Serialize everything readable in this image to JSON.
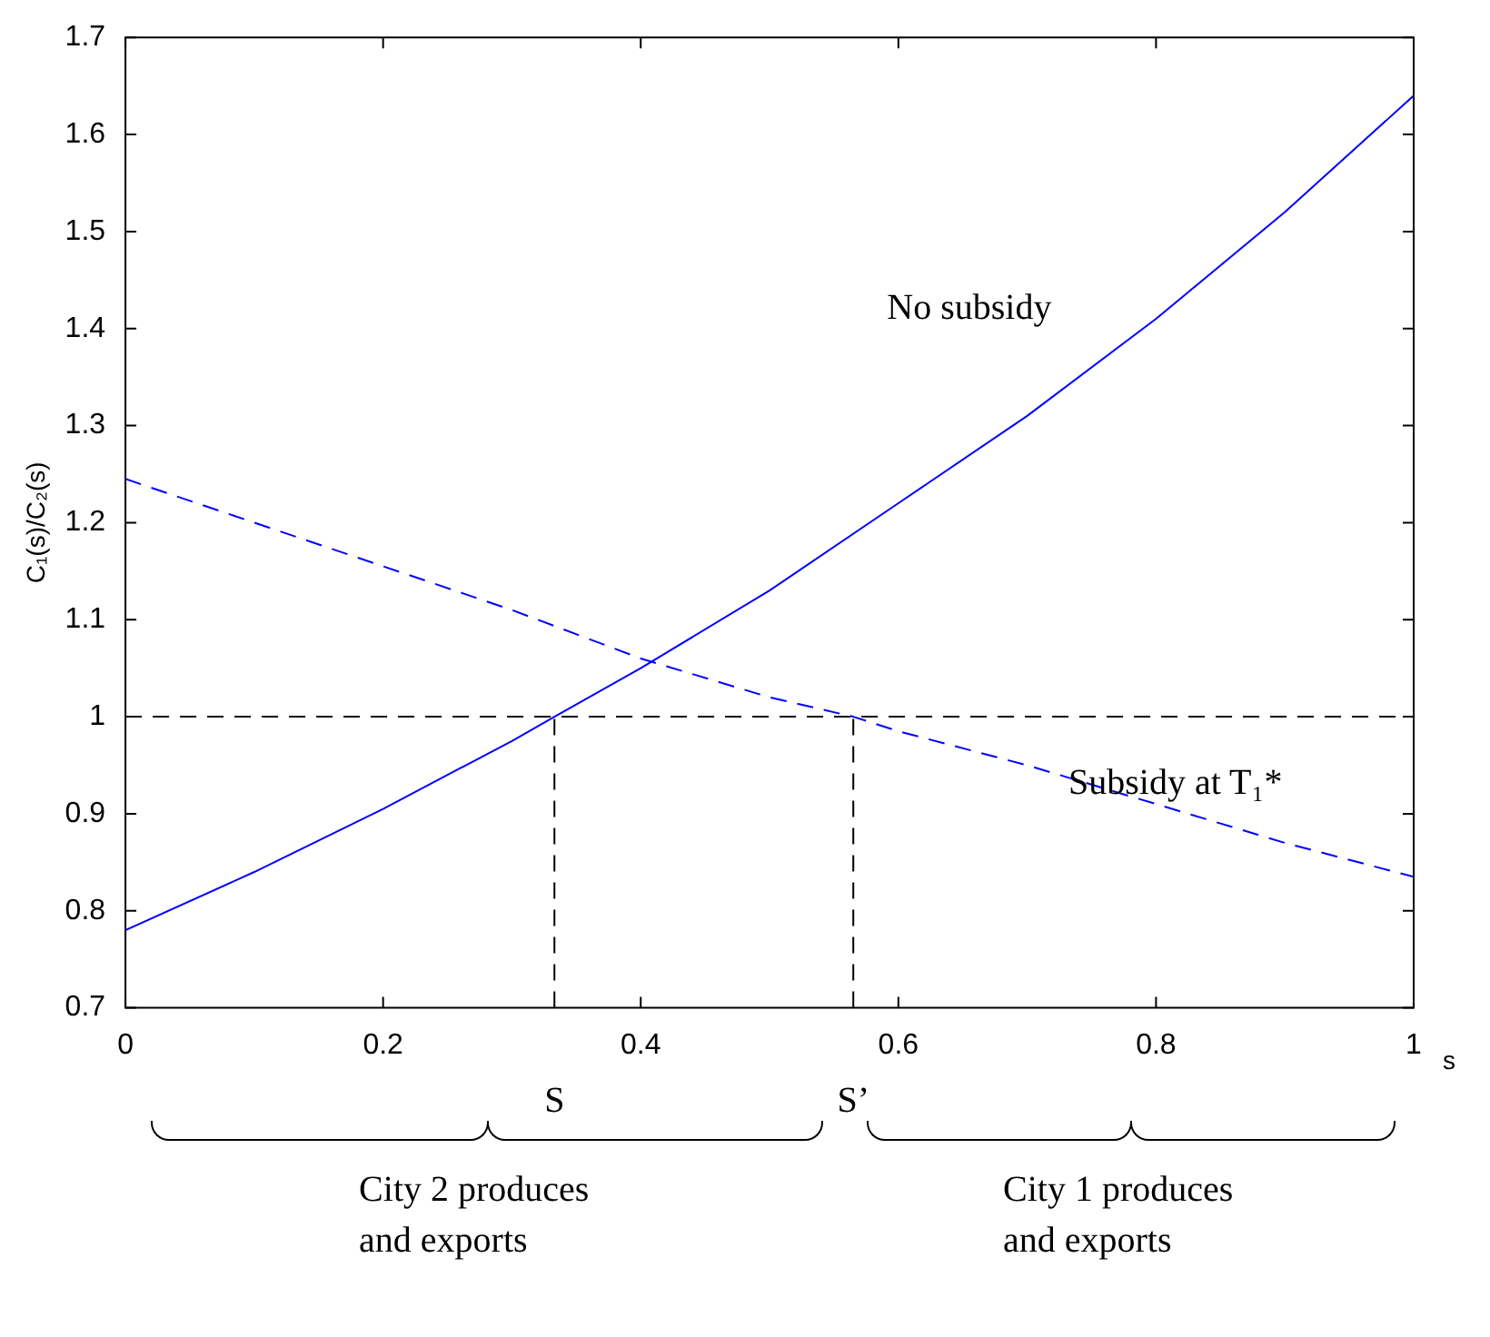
{
  "chart_data": {
    "type": "line",
    "xlabel": "s",
    "ylabel": "C₁(s)/C₂(s)",
    "xlim": [
      0,
      1
    ],
    "xticks": [
      0,
      0.2,
      0.4,
      0.6,
      0.8,
      1
    ],
    "ylim": [
      0.7,
      1.7
    ],
    "yticks": [
      0.7,
      0.8,
      0.9,
      1,
      1.1,
      1.2,
      1.3,
      1.4,
      1.5,
      1.6,
      1.7
    ],
    "legend": false,
    "marker": "none",
    "series": [
      {
        "color": "#0000ff",
        "line_style": "solid",
        "x": [
          0,
          0.1,
          0.2,
          0.3,
          0.333,
          0.4,
          0.5,
          0.6,
          0.7,
          0.8,
          0.9,
          1
        ],
        "values": [
          0.78,
          0.84,
          0.905,
          0.975,
          1.0,
          1.05,
          1.13,
          1.22,
          1.31,
          1.41,
          1.52,
          1.64
        ]
      },
      {
        "color": "#0000ff",
        "line_style": "dashed",
        "x": [
          0,
          0.1,
          0.2,
          0.3,
          0.4,
          0.5,
          0.565,
          0.6,
          0.7,
          0.8,
          0.9,
          1
        ],
        "values": [
          1.245,
          1.2,
          1.155,
          1.11,
          1.06,
          1.02,
          1.0,
          0.985,
          0.95,
          0.91,
          0.87,
          0.835
        ]
      },
      {
        "color": "#000000",
        "line_style": "dashed",
        "x": [
          0.333,
          0.333
        ],
        "values": [
          0.7,
          1.0
        ]
      },
      {
        "color": "#000000",
        "line_style": "dashed",
        "x": [
          0.565,
          0.565
        ],
        "values": [
          0.7,
          1.0
        ]
      }
    ],
    "ref_lines": [
      {
        "axis": "y",
        "value": 1,
        "color": "#000000",
        "line_style": "dashed"
      }
    ],
    "annotations": [
      "No subsidy",
      "Subsidy at T₁*",
      {
        "text": "S",
        "x": 0.333,
        "y": 0.7
      },
      {
        "text": "S’",
        "x": 0.565,
        "y": 0.7
      },
      "City 2 produces and exports",
      "City 1 produces and exports"
    ]
  }
}
